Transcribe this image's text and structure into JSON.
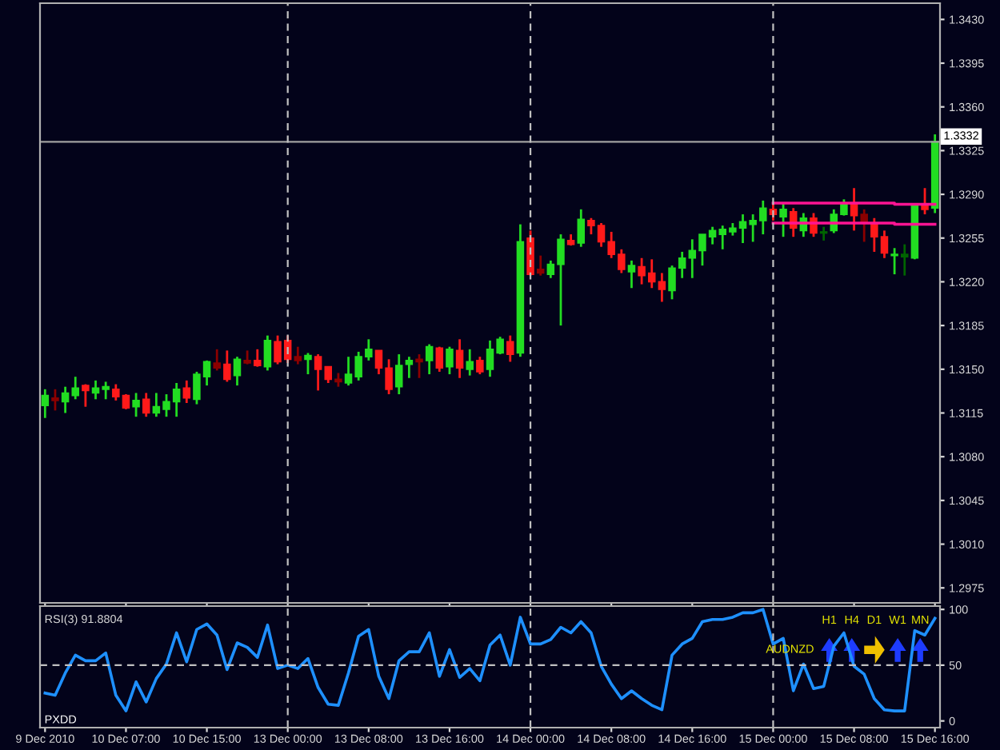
{
  "chart_data": [
    {
      "type": "candlestick",
      "categories": [
        "9 Dec 2010",
        null,
        null,
        null,
        null,
        null,
        null,
        null,
        "10 Dec 07:00",
        null,
        null,
        null,
        null,
        null,
        null,
        null,
        "10 Dec 15:00",
        null,
        null,
        null,
        null,
        null,
        null,
        null,
        "13 Dec 00:00",
        null,
        null,
        null,
        null,
        null,
        null,
        null,
        "13 Dec 08:00",
        null,
        null,
        null,
        null,
        null,
        null,
        null,
        "13 Dec 16:00",
        null,
        null,
        null,
        null,
        null,
        null,
        null,
        "14 Dec 00:00",
        null,
        null,
        null,
        null,
        null,
        null,
        null,
        "14 Dec 08:00",
        null,
        null,
        null,
        null,
        null,
        null,
        null,
        "14 Dec 16:00",
        null,
        null,
        null,
        null,
        null,
        null,
        null,
        "15 Dec 00:00",
        null,
        null,
        null,
        null,
        null,
        null,
        null,
        "15 Dec 08:00",
        null,
        null,
        null,
        null,
        null,
        null,
        null,
        "15 Dec 16:00"
      ],
      "ohlc": [
        [
          1.3121,
          1.3134,
          1.3111,
          1.3129
        ],
        [
          1.3127,
          1.3134,
          1.3117,
          1.3125
        ],
        [
          1.3124,
          1.3136,
          1.3115,
          1.3131
        ],
        [
          1.3129,
          1.3144,
          1.3126,
          1.3135
        ],
        [
          1.3137,
          1.3138,
          1.312,
          1.3133
        ],
        [
          1.3131,
          1.3141,
          1.3126,
          1.3135
        ],
        [
          1.3134,
          1.314,
          1.3126,
          1.3136
        ],
        [
          1.3134,
          1.3138,
          1.3125,
          1.3128
        ],
        [
          1.3129,
          1.313,
          1.3118,
          1.3119
        ],
        [
          1.312,
          1.3131,
          1.3112,
          1.3125
        ],
        [
          1.3126,
          1.3131,
          1.3112,
          1.3115
        ],
        [
          1.3115,
          1.3131,
          1.3112,
          1.312
        ],
        [
          1.3118,
          1.313,
          1.3112,
          1.3124
        ],
        [
          1.3124,
          1.3139,
          1.3112,
          1.3134
        ],
        [
          1.3135,
          1.3141,
          1.3123,
          1.3127
        ],
        [
          1.3126,
          1.3148,
          1.3122,
          1.3146
        ],
        [
          1.3144,
          1.3157,
          1.3137,
          1.3156
        ],
        [
          1.3155,
          1.3166,
          1.3149,
          1.3151
        ],
        [
          1.3154,
          1.3165,
          1.314,
          1.3142
        ],
        [
          1.3145,
          1.316,
          1.3137,
          1.3158
        ],
        [
          1.3157,
          1.3165,
          1.3154,
          1.3155
        ],
        [
          1.3157,
          1.3166,
          1.3152,
          1.3153
        ],
        [
          1.3152,
          1.3177,
          1.3149,
          1.3173
        ],
        [
          1.3172,
          1.3177,
          1.3154,
          1.3156
        ],
        [
          1.3173,
          1.3177,
          1.3155,
          1.3158
        ],
        [
          1.316,
          1.3168,
          1.3154,
          1.3157
        ],
        [
          1.3158,
          1.3163,
          1.3146,
          1.3161
        ],
        [
          1.316,
          1.3162,
          1.3133,
          1.315
        ],
        [
          1.3152,
          1.3152,
          1.3139,
          1.3142
        ],
        [
          1.3142,
          1.3147,
          1.3136,
          1.314
        ],
        [
          1.3139,
          1.316,
          1.3137,
          1.3146
        ],
        [
          1.3144,
          1.3164,
          1.3141,
          1.316
        ],
        [
          1.316,
          1.3174,
          1.3157,
          1.3166
        ],
        [
          1.3165,
          1.3165,
          1.3146,
          1.3151
        ],
        [
          1.3151,
          1.3158,
          1.313,
          1.3134
        ],
        [
          1.3136,
          1.3162,
          1.313,
          1.3153
        ],
        [
          1.3154,
          1.316,
          1.3143,
          1.3157
        ],
        [
          1.3158,
          1.3162,
          1.3143,
          1.3156
        ],
        [
          1.3157,
          1.317,
          1.3146,
          1.3168
        ],
        [
          1.3167,
          1.3168,
          1.3148,
          1.3151
        ],
        [
          1.3152,
          1.3168,
          1.3146,
          1.3166
        ],
        [
          1.3165,
          1.3174,
          1.3143,
          1.3151
        ],
        [
          1.315,
          1.3166,
          1.3145,
          1.3156
        ],
        [
          1.3157,
          1.316,
          1.3146,
          1.3148
        ],
        [
          1.315,
          1.3173,
          1.3144,
          1.3166
        ],
        [
          1.3163,
          1.3176,
          1.3162,
          1.3174
        ],
        [
          1.3172,
          1.3177,
          1.3156,
          1.3162
        ],
        [
          1.3163,
          1.3266,
          1.316,
          1.3252
        ],
        [
          1.3255,
          1.3261,
          1.3225,
          1.3226
        ],
        [
          1.323,
          1.3241,
          1.3225,
          1.3227
        ],
        [
          1.3226,
          1.3237,
          1.3223,
          1.3234
        ],
        [
          1.3234,
          1.3258,
          1.3185,
          1.3254
        ],
        [
          1.3253,
          1.3258,
          1.3249,
          1.325
        ],
        [
          1.3251,
          1.3278,
          1.3248,
          1.327
        ],
        [
          1.3269,
          1.3271,
          1.3258,
          1.3265
        ],
        [
          1.3265,
          1.3267,
          1.3248,
          1.3252
        ],
        [
          1.3252,
          1.326,
          1.3239,
          1.3242
        ],
        [
          1.3242,
          1.3246,
          1.3227,
          1.323
        ],
        [
          1.3228,
          1.3237,
          1.3215,
          1.3233
        ],
        [
          1.3232,
          1.3239,
          1.3218,
          1.3225
        ],
        [
          1.3227,
          1.3238,
          1.3215,
          1.322
        ],
        [
          1.322,
          1.3227,
          1.3204,
          1.3214
        ],
        [
          1.3213,
          1.3233,
          1.3206,
          1.3231
        ],
        [
          1.3231,
          1.3244,
          1.3223,
          1.3239
        ],
        [
          1.3239,
          1.3254,
          1.3223,
          1.3245
        ],
        [
          1.3245,
          1.3258,
          1.3233,
          1.3258
        ],
        [
          1.3256,
          1.3264,
          1.325,
          1.3261
        ],
        [
          1.3258,
          1.3265,
          1.3246,
          1.3262
        ],
        [
          1.326,
          1.3267,
          1.3257,
          1.3263
        ],
        [
          1.3263,
          1.3274,
          1.3251,
          1.3268
        ],
        [
          1.3266,
          1.3274,
          1.3252,
          1.3269
        ],
        [
          1.3269,
          1.3285,
          1.3258,
          1.3279
        ],
        [
          1.3278,
          1.3283,
          1.3269,
          1.3274
        ],
        [
          1.3272,
          1.3283,
          1.3256,
          1.3278
        ],
        [
          1.3276,
          1.3279,
          1.3256,
          1.3263
        ],
        [
          1.3261,
          1.3275,
          1.3256,
          1.3271
        ],
        [
          1.3271,
          1.3275,
          1.3256,
          1.3259
        ],
        [
          1.3259,
          1.3264,
          1.3253,
          1.326
        ],
        [
          1.3261,
          1.3278,
          1.3259,
          1.3274
        ],
        [
          1.3274,
          1.3286,
          1.3273,
          1.3282
        ],
        [
          1.3283,
          1.3295,
          1.3261,
          1.3273
        ],
        [
          1.3274,
          1.3278,
          1.3252,
          1.3267
        ],
        [
          1.3267,
          1.3271,
          1.3244,
          1.3256
        ],
        [
          1.3256,
          1.3261,
          1.3239,
          1.3243
        ],
        [
          1.3241,
          1.3247,
          1.3226,
          1.3242
        ],
        [
          1.324,
          1.325,
          1.3225,
          1.3242
        ],
        [
          1.3239,
          1.3283,
          1.3238,
          1.3282
        ],
        [
          1.3281,
          1.3295,
          1.3274,
          1.3278
        ],
        [
          1.3279,
          1.3338,
          1.3275,
          1.3332
        ]
      ],
      "colors": [
        "#22dd22",
        "#8b0000",
        "#22dd22",
        "#22dd22",
        "#ff1a1a",
        "#22dd22",
        "#22dd22",
        "#ff1a1a",
        "#ff1a1a",
        "#22dd22",
        "#ff1a1a",
        "#22dd22",
        "#22dd22",
        "#22dd22",
        "#ff1a1a",
        "#22dd22",
        "#22dd22",
        "#8b0000",
        "#ff1a1a",
        "#22dd22",
        "#8b0000",
        "#ff1a1a",
        "#22dd22",
        "#ff1a1a",
        "#ff1a1a",
        "#8b0000",
        "#22dd22",
        "#ff1a1a",
        "#ff1a1a",
        "#8b0000",
        "#22dd22",
        "#22dd22",
        "#22dd22",
        "#ff1a1a",
        "#ff1a1a",
        "#22dd22",
        "#22dd22",
        "#8b0000",
        "#22dd22",
        "#ff1a1a",
        "#22dd22",
        "#ff1a1a",
        "#22dd22",
        "#ff1a1a",
        "#22dd22",
        "#22dd22",
        "#ff1a1a",
        "#22dd22",
        "#ff1a1a",
        "#8b0000",
        "#22dd22",
        "#22dd22",
        "#ff1a1a",
        "#22dd22",
        "#ff1a1a",
        "#ff1a1a",
        "#ff1a1a",
        "#ff1a1a",
        "#22dd22",
        "#ff1a1a",
        "#ff1a1a",
        "#ff1a1a",
        "#22dd22",
        "#22dd22",
        "#22dd22",
        "#22dd22",
        "#22dd22",
        "#22dd22",
        "#22dd22",
        "#22dd22",
        "#22dd22",
        "#22dd22",
        "#ff1a1a",
        "#22dd22",
        "#ff1a1a",
        "#22dd22",
        "#ff1a1a",
        "#006400",
        "#22dd22",
        "#22dd22",
        "#ff1a1a",
        "#8b0000",
        "#ff1a1a",
        "#ff1a1a",
        "#22dd22",
        "#006400",
        "#22dd22",
        "#ff1a1a",
        "#22dd22"
      ],
      "series": [
        {
          "type": "step",
          "color": "#ff1493",
          "values": [
            null,
            null,
            null,
            null,
            null,
            null,
            null,
            null,
            null,
            null,
            null,
            null,
            null,
            null,
            null,
            null,
            null,
            null,
            null,
            null,
            null,
            null,
            null,
            null,
            null,
            null,
            null,
            null,
            null,
            null,
            null,
            null,
            null,
            null,
            null,
            null,
            null,
            null,
            null,
            null,
            null,
            null,
            null,
            null,
            null,
            null,
            null,
            null,
            null,
            null,
            null,
            null,
            null,
            null,
            null,
            null,
            null,
            null,
            null,
            null,
            null,
            null,
            null,
            null,
            null,
            null,
            null,
            null,
            null,
            null,
            null,
            null,
            1.3283,
            1.3283,
            1.3283,
            1.3283,
            1.3283,
            1.3283,
            1.3283,
            1.3283,
            1.3283,
            1.3283,
            1.3283,
            1.3283,
            1.3282,
            1.3282,
            1.3282,
            1.3282,
            1.3282
          ]
        },
        {
          "type": "step",
          "color": "#ff1493",
          "values": [
            null,
            null,
            null,
            null,
            null,
            null,
            null,
            null,
            null,
            null,
            null,
            null,
            null,
            null,
            null,
            null,
            null,
            null,
            null,
            null,
            null,
            null,
            null,
            null,
            null,
            null,
            null,
            null,
            null,
            null,
            null,
            null,
            null,
            null,
            null,
            null,
            null,
            null,
            null,
            null,
            null,
            null,
            null,
            null,
            null,
            null,
            null,
            null,
            null,
            null,
            null,
            null,
            null,
            null,
            null,
            null,
            null,
            null,
            null,
            null,
            null,
            null,
            null,
            null,
            null,
            null,
            null,
            null,
            null,
            null,
            null,
            null,
            1.3267,
            1.3267,
            1.3267,
            1.3267,
            1.3267,
            1.3267,
            1.3267,
            1.3267,
            1.3267,
            1.3267,
            1.3267,
            1.3267,
            1.3266,
            1.3266,
            1.3266,
            1.3266,
            1.3266
          ]
        }
      ],
      "ylim": [
        1.2963,
        1.3443
      ],
      "yticks": [
        {
          "value": 1.2975,
          "label": "1.2975"
        },
        {
          "value": 1.301,
          "label": "1.3010"
        },
        {
          "value": 1.3045,
          "label": "1.3045"
        },
        {
          "value": 1.308,
          "label": "1.3080"
        },
        {
          "value": 1.3115,
          "label": "1.3115"
        },
        {
          "value": 1.315,
          "label": "1.3150"
        },
        {
          "value": 1.3185,
          "label": "1.3185"
        },
        {
          "value": 1.322,
          "label": "1.3220"
        },
        {
          "value": 1.3255,
          "label": "1.3255"
        },
        {
          "value": 1.329,
          "label": "1.3290"
        },
        {
          "value": 1.3325,
          "label": "1.3325"
        },
        {
          "value": 1.336,
          "label": "1.3360"
        },
        {
          "value": 1.3395,
          "label": "1.3395"
        },
        {
          "value": 1.343,
          "label": "1.3430"
        }
      ],
      "ref_lines": [
        {
          "axis": "y",
          "value": 1.3332,
          "label": "1.3332",
          "color": "#a0a0a0"
        },
        {
          "axis": "x",
          "value": "13 Dec 00:00",
          "color": "#c0c0c0",
          "line_style": "dashed"
        },
        {
          "axis": "x",
          "value": "14 Dec 00:00",
          "color": "#c0c0c0",
          "line_style": "dashed"
        },
        {
          "axis": "x",
          "value": "15 Dec 00:00",
          "color": "#c0c0c0",
          "line_style": "dashed"
        }
      ],
      "tick_labels": "y"
    },
    {
      "type": "line",
      "title": "RSI(3) 91.8804",
      "categories": [
        "9 Dec 2010",
        null,
        null,
        null,
        null,
        null,
        null,
        null,
        "10 Dec 07:00",
        null,
        null,
        null,
        null,
        null,
        null,
        null,
        "10 Dec 15:00",
        null,
        null,
        null,
        null,
        null,
        null,
        null,
        "13 Dec 00:00",
        null,
        null,
        null,
        null,
        null,
        null,
        null,
        "13 Dec 08:00",
        null,
        null,
        null,
        null,
        null,
        null,
        null,
        "13 Dec 16:00",
        null,
        null,
        null,
        null,
        null,
        null,
        null,
        "14 Dec 00:00",
        null,
        null,
        null,
        null,
        null,
        null,
        null,
        "14 Dec 08:00",
        null,
        null,
        null,
        null,
        null,
        null,
        null,
        "14 Dec 16:00",
        null,
        null,
        null,
        null,
        null,
        null,
        null,
        "15 Dec 00:00",
        null,
        null,
        null,
        null,
        null,
        null,
        null,
        "15 Dec 08:00",
        null,
        null,
        null,
        null,
        null,
        null,
        null,
        "15 Dec 16:00"
      ],
      "series": [
        {
          "color": "#1e90ff",
          "values": [
            25,
            23,
            43,
            59,
            54,
            54,
            61,
            23,
            9,
            35,
            17,
            38,
            51,
            79,
            53,
            82,
            87,
            77,
            46,
            70,
            66,
            57,
            86,
            47,
            50,
            47,
            56,
            30,
            15,
            14,
            43,
            76,
            82,
            40,
            20,
            54,
            62,
            62,
            79,
            40,
            64,
            39,
            47,
            36,
            68,
            77,
            50,
            93,
            69,
            69,
            73,
            84,
            79,
            89,
            79,
            49,
            33,
            20,
            27,
            20,
            14,
            10,
            59,
            69,
            74,
            89,
            91,
            91,
            93,
            97,
            97,
            100,
            69,
            74,
            27,
            51,
            29,
            31,
            67,
            79,
            49,
            42,
            20,
            10,
            9,
            9,
            81,
            77,
            92
          ]
        }
      ],
      "ylim": [
        -6,
        103
      ],
      "yticks": [
        0,
        50,
        100
      ],
      "ref_lines": [
        {
          "axis": "y",
          "value": 50,
          "color": "#c0c0c0",
          "line_style": "dashed"
        },
        {
          "axis": "x",
          "value": "13 Dec 00:00",
          "color": "#c0c0c0",
          "line_style": "dashed"
        },
        {
          "axis": "x",
          "value": "14 Dec 00:00",
          "color": "#c0c0c0",
          "line_style": "dashed"
        },
        {
          "axis": "x",
          "value": "15 Dec 00:00",
          "color": "#c0c0c0",
          "line_style": "dashed"
        }
      ],
      "annotations": [
        "PXDD",
        "AUDNZD",
        "H1",
        "H4",
        "D1",
        "W1",
        "MN"
      ]
    }
  ]
}
